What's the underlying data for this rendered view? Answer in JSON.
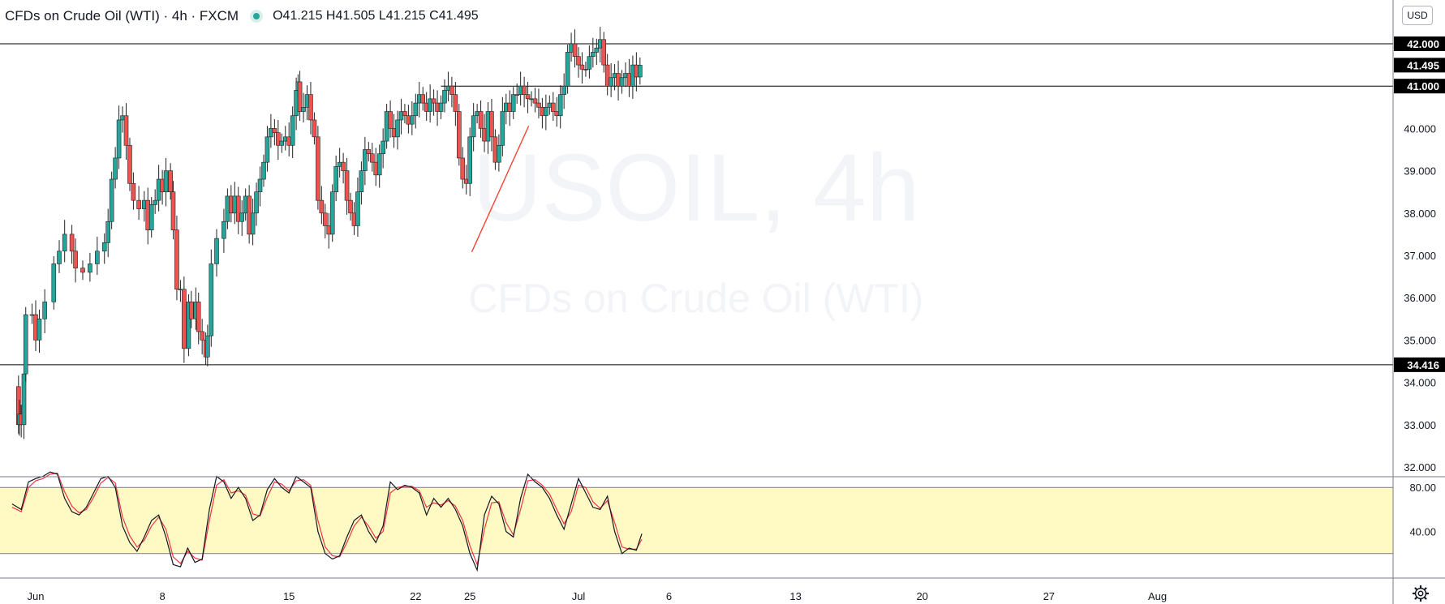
{
  "legend": {
    "symbol": "CFDs on Crude Oil (WTI) · 4h · FXCM",
    "ohlc": "O41.215  H41.505  L41.215  C41.495"
  },
  "watermark": {
    "symbol": "USOIL, 4h",
    "description": "CFDs on Crude Oil (WTI)"
  },
  "currency": "USD",
  "colors": {
    "up": "#26a69a",
    "down": "#ef5350",
    "wick": "#222222",
    "trendline": "#f44336",
    "level_line": "#000000",
    "stoch_k": "#131722",
    "stoch_d": "#f23645",
    "stoch_band_fill": "#fff9c4",
    "watermark": "#f3f4f7"
  },
  "icons": {
    "gear": "gear-icon",
    "status": "market-open-dot-icon"
  },
  "chart_data": {
    "type": "candlestick",
    "timeframe": "4h",
    "x_tick_labels": [
      "Jun",
      "8",
      "15",
      "22",
      "25",
      "Jul",
      "6",
      "13",
      "20",
      "27",
      "Aug"
    ],
    "price_axis": {
      "ylim": [
        31.8,
        43.0
      ],
      "tick_labels": [
        "42.000",
        "41.000",
        "40.000",
        "39.000",
        "38.000",
        "37.000",
        "36.000",
        "35.000",
        "34.000",
        "33.000",
        "32.000"
      ],
      "highlighted_labels": [
        {
          "text": "42.000",
          "value": 42.0
        },
        {
          "text": "41.495",
          "value": 41.495
        },
        {
          "text": "41.000",
          "value": 41.0
        },
        {
          "text": "34.416",
          "value": 34.416
        }
      ]
    },
    "horizontal_levels": [
      42.0,
      41.0,
      34.416
    ],
    "trendline": {
      "from": {
        "x_day": 25.1,
        "y": 37.08
      },
      "to": {
        "x_day": 28.25,
        "y": 40.06
      }
    },
    "candles_close_path": [
      [
        -0.3,
        33.9
      ],
      [
        0.05,
        33.0
      ],
      [
        0.1,
        33.25
      ],
      [
        0.2,
        33.0
      ],
      [
        0.35,
        34.2
      ],
      [
        0.45,
        35.6
      ],
      [
        0.8,
        35.6
      ],
      [
        1.0,
        35.0
      ],
      [
        1.2,
        35.5
      ],
      [
        1.5,
        35.9
      ],
      [
        2.0,
        36.8
      ],
      [
        2.3,
        37.1
      ],
      [
        2.6,
        37.5
      ],
      [
        3.0,
        37.1
      ],
      [
        3.2,
        36.7
      ],
      [
        3.6,
        36.6
      ],
      [
        4.0,
        36.8
      ],
      [
        4.4,
        37.1
      ],
      [
        4.8,
        37.3
      ],
      [
        5.0,
        37.8
      ],
      [
        5.2,
        38.8
      ],
      [
        5.4,
        39.3
      ],
      [
        5.6,
        40.2
      ],
      [
        5.8,
        40.3
      ],
      [
        6.0,
        39.6
      ],
      [
        6.2,
        38.7
      ],
      [
        6.4,
        38.3
      ],
      [
        6.7,
        38.1
      ],
      [
        7.0,
        38.3
      ],
      [
        7.2,
        37.6
      ],
      [
        7.4,
        38.2
      ],
      [
        7.6,
        38.3
      ],
      [
        7.8,
        38.8
      ],
      [
        8.0,
        38.5
      ],
      [
        8.2,
        39.0
      ],
      [
        8.45,
        38.5
      ],
      [
        8.6,
        37.6
      ],
      [
        8.8,
        36.2
      ],
      [
        9.0,
        36.2
      ],
      [
        9.2,
        34.8
      ],
      [
        9.45,
        35.9
      ],
      [
        9.6,
        35.5
      ],
      [
        9.85,
        35.9
      ],
      [
        10.0,
        35.2
      ],
      [
        10.2,
        35.0
      ],
      [
        10.4,
        34.6
      ],
      [
        10.5,
        35.1
      ],
      [
        10.7,
        36.8
      ],
      [
        11.0,
        37.4
      ],
      [
        11.4,
        37.8
      ],
      [
        11.6,
        38.4
      ],
      [
        11.8,
        38.0
      ],
      [
        12.0,
        38.4
      ],
      [
        12.2,
        37.8
      ],
      [
        12.4,
        38.0
      ],
      [
        12.6,
        38.4
      ],
      [
        12.8,
        37.5
      ],
      [
        13.0,
        38.0
      ],
      [
        13.2,
        38.5
      ],
      [
        13.4,
        38.8
      ],
      [
        13.6,
        39.2
      ],
      [
        13.8,
        39.8
      ],
      [
        14.0,
        40.0
      ],
      [
        14.2,
        39.9
      ],
      [
        14.4,
        39.6
      ],
      [
        14.6,
        39.7
      ],
      [
        14.8,
        39.8
      ],
      [
        15.0,
        39.6
      ],
      [
        15.2,
        40.3
      ],
      [
        15.4,
        40.9
      ],
      [
        15.5,
        41.1
      ],
      [
        15.6,
        40.4
      ],
      [
        15.8,
        40.5
      ],
      [
        16.0,
        40.8
      ],
      [
        16.2,
        40.2
      ],
      [
        16.4,
        39.8
      ],
      [
        16.6,
        38.3
      ],
      [
        16.8,
        38.0
      ],
      [
        17.0,
        37.7
      ],
      [
        17.2,
        37.5
      ],
      [
        17.4,
        38.5
      ],
      [
        17.6,
        39.1
      ],
      [
        17.8,
        39.2
      ],
      [
        18.0,
        39.0
      ],
      [
        18.2,
        38.3
      ],
      [
        18.4,
        38.0
      ],
      [
        18.6,
        37.7
      ],
      [
        18.8,
        38.5
      ],
      [
        19.0,
        39.0
      ],
      [
        19.2,
        39.5
      ],
      [
        19.4,
        39.4
      ],
      [
        19.6,
        39.2
      ],
      [
        19.8,
        38.9
      ],
      [
        20.0,
        39.4
      ],
      [
        20.2,
        39.7
      ],
      [
        20.4,
        40.4
      ],
      [
        20.6,
        40.0
      ],
      [
        20.8,
        39.8
      ],
      [
        21.0,
        40.2
      ],
      [
        21.2,
        40.4
      ],
      [
        21.4,
        40.3
      ],
      [
        21.6,
        40.1
      ],
      [
        21.8,
        40.3
      ],
      [
        22.0,
        40.6
      ],
      [
        22.2,
        40.8
      ],
      [
        22.4,
        40.6
      ],
      [
        22.6,
        40.4
      ],
      [
        22.8,
        40.7
      ],
      [
        23.0,
        40.6
      ],
      [
        23.2,
        40.4
      ],
      [
        23.4,
        40.6
      ],
      [
        23.6,
        40.9
      ],
      [
        23.8,
        41.0
      ],
      [
        24.0,
        40.8
      ],
      [
        24.2,
        40.4
      ],
      [
        24.4,
        39.3
      ],
      [
        24.6,
        38.8
      ],
      [
        24.8,
        38.7
      ],
      [
        25.0,
        39.8
      ],
      [
        25.2,
        40.3
      ],
      [
        25.4,
        40.4
      ],
      [
        25.6,
        40.0
      ],
      [
        25.8,
        39.7
      ],
      [
        26.0,
        40.4
      ],
      [
        26.2,
        39.8
      ],
      [
        26.4,
        39.2
      ],
      [
        26.6,
        39.6
      ],
      [
        26.8,
        40.4
      ],
      [
        27.0,
        40.6
      ],
      [
        27.2,
        40.4
      ],
      [
        27.4,
        40.8
      ],
      [
        27.6,
        40.8
      ],
      [
        27.8,
        41.0
      ],
      [
        28.0,
        40.8
      ],
      [
        28.2,
        40.7
      ],
      [
        28.4,
        40.7
      ],
      [
        28.6,
        40.6
      ],
      [
        28.8,
        40.5
      ],
      [
        29.0,
        40.3
      ],
      [
        29.2,
        40.5
      ],
      [
        29.4,
        40.6
      ],
      [
        29.6,
        40.4
      ],
      [
        29.8,
        40.3
      ],
      [
        30.0,
        40.8
      ],
      [
        30.2,
        41.0
      ],
      [
        30.4,
        41.8
      ],
      [
        30.6,
        42.0
      ],
      [
        30.8,
        41.7
      ],
      [
        31.0,
        41.5
      ],
      [
        31.2,
        41.4
      ],
      [
        31.4,
        41.4
      ],
      [
        31.6,
        41.7
      ],
      [
        31.8,
        41.8
      ],
      [
        32.0,
        41.9
      ],
      [
        32.2,
        42.1
      ],
      [
        32.4,
        41.5
      ],
      [
        32.6,
        41.0
      ],
      [
        32.8,
        41.2
      ],
      [
        33.0,
        41.3
      ],
      [
        33.2,
        41.0
      ],
      [
        33.4,
        41.2
      ],
      [
        33.6,
        41.3
      ],
      [
        33.8,
        41.0
      ],
      [
        34.0,
        41.5
      ],
      [
        34.2,
        41.215
      ],
      [
        34.4,
        41.495
      ]
    ],
    "stochastic": {
      "band": [
        20,
        80
      ],
      "tick_labels": [
        "80.00",
        "40.00"
      ],
      "k_path": [
        [
          -0.3,
          65
        ],
        [
          0.2,
          60
        ],
        [
          0.6,
          85
        ],
        [
          1.0,
          88
        ],
        [
          1.4,
          90
        ],
        [
          1.8,
          94
        ],
        [
          2.2,
          92
        ],
        [
          2.6,
          70
        ],
        [
          3.0,
          58
        ],
        [
          3.4,
          55
        ],
        [
          3.8,
          62
        ],
        [
          4.2,
          75
        ],
        [
          4.6,
          88
        ],
        [
          5.0,
          90
        ],
        [
          5.4,
          80
        ],
        [
          5.8,
          45
        ],
        [
          6.2,
          30
        ],
        [
          6.6,
          22
        ],
        [
          7.0,
          35
        ],
        [
          7.4,
          50
        ],
        [
          7.8,
          55
        ],
        [
          8.2,
          35
        ],
        [
          8.6,
          10
        ],
        [
          9.0,
          8
        ],
        [
          9.4,
          25
        ],
        [
          9.8,
          12
        ],
        [
          10.2,
          15
        ],
        [
          10.6,
          60
        ],
        [
          11.0,
          90
        ],
        [
          11.4,
          85
        ],
        [
          11.8,
          70
        ],
        [
          12.2,
          80
        ],
        [
          12.6,
          70
        ],
        [
          13.0,
          50
        ],
        [
          13.4,
          55
        ],
        [
          13.8,
          78
        ],
        [
          14.2,
          88
        ],
        [
          14.6,
          80
        ],
        [
          15.0,
          75
        ],
        [
          15.4,
          90
        ],
        [
          15.8,
          85
        ],
        [
          16.2,
          80
        ],
        [
          16.6,
          40
        ],
        [
          17.0,
          20
        ],
        [
          17.4,
          15
        ],
        [
          17.8,
          18
        ],
        [
          18.2,
          35
        ],
        [
          18.6,
          50
        ],
        [
          19.0,
          55
        ],
        [
          19.4,
          40
        ],
        [
          19.8,
          30
        ],
        [
          20.2,
          45
        ],
        [
          20.6,
          85
        ],
        [
          21.0,
          78
        ],
        [
          21.4,
          82
        ],
        [
          21.8,
          80
        ],
        [
          22.2,
          75
        ],
        [
          22.6,
          55
        ],
        [
          23.0,
          70
        ],
        [
          23.4,
          62
        ],
        [
          23.8,
          70
        ],
        [
          24.2,
          60
        ],
        [
          24.6,
          45
        ],
        [
          25.0,
          20
        ],
        [
          25.4,
          5
        ],
        [
          25.8,
          55
        ],
        [
          26.2,
          72
        ],
        [
          26.6,
          65
        ],
        [
          27.0,
          40
        ],
        [
          27.4,
          35
        ],
        [
          27.8,
          70
        ],
        [
          28.2,
          92
        ],
        [
          28.6,
          85
        ],
        [
          29.0,
          80
        ],
        [
          29.4,
          70
        ],
        [
          29.8,
          55
        ],
        [
          30.2,
          42
        ],
        [
          30.6,
          65
        ],
        [
          31.0,
          88
        ],
        [
          31.4,
          75
        ],
        [
          31.8,
          62
        ],
        [
          32.2,
          60
        ],
        [
          32.6,
          72
        ],
        [
          33.0,
          40
        ],
        [
          33.4,
          20
        ],
        [
          33.8,
          25
        ],
        [
          34.2,
          23
        ],
        [
          34.5,
          38
        ]
      ],
      "d_path": [
        [
          -0.3,
          62
        ],
        [
          0.2,
          58
        ],
        [
          0.6,
          80
        ],
        [
          1.0,
          86
        ],
        [
          1.4,
          88
        ],
        [
          1.8,
          92
        ],
        [
          2.2,
          93
        ],
        [
          2.6,
          76
        ],
        [
          3.0,
          63
        ],
        [
          3.4,
          57
        ],
        [
          3.8,
          60
        ],
        [
          4.2,
          71
        ],
        [
          4.6,
          84
        ],
        [
          5.0,
          89
        ],
        [
          5.4,
          84
        ],
        [
          5.8,
          53
        ],
        [
          6.2,
          36
        ],
        [
          6.6,
          26
        ],
        [
          7.0,
          32
        ],
        [
          7.4,
          45
        ],
        [
          7.8,
          53
        ],
        [
          8.2,
          42
        ],
        [
          8.6,
          17
        ],
        [
          9.0,
          11
        ],
        [
          9.4,
          22
        ],
        [
          9.8,
          16
        ],
        [
          10.2,
          14
        ],
        [
          10.6,
          50
        ],
        [
          11.0,
          82
        ],
        [
          11.4,
          87
        ],
        [
          11.8,
          75
        ],
        [
          12.2,
          77
        ],
        [
          12.6,
          73
        ],
        [
          13.0,
          56
        ],
        [
          13.4,
          54
        ],
        [
          13.8,
          71
        ],
        [
          14.2,
          85
        ],
        [
          14.6,
          83
        ],
        [
          15.0,
          77
        ],
        [
          15.4,
          86
        ],
        [
          15.8,
          87
        ],
        [
          16.2,
          82
        ],
        [
          16.6,
          50
        ],
        [
          17.0,
          26
        ],
        [
          17.4,
          18
        ],
        [
          17.8,
          17
        ],
        [
          18.2,
          30
        ],
        [
          18.6,
          45
        ],
        [
          19.0,
          53
        ],
        [
          19.4,
          45
        ],
        [
          19.8,
          34
        ],
        [
          20.2,
          40
        ],
        [
          20.6,
          75
        ],
        [
          21.0,
          80
        ],
        [
          21.4,
          81
        ],
        [
          21.8,
          81
        ],
        [
          22.2,
          77
        ],
        [
          22.6,
          62
        ],
        [
          23.0,
          66
        ],
        [
          23.4,
          64
        ],
        [
          23.8,
          68
        ],
        [
          24.2,
          63
        ],
        [
          24.6,
          50
        ],
        [
          25.0,
          27
        ],
        [
          25.4,
          10
        ],
        [
          25.8,
          42
        ],
        [
          26.2,
          66
        ],
        [
          26.6,
          67
        ],
        [
          27.0,
          48
        ],
        [
          27.4,
          37
        ],
        [
          27.8,
          60
        ],
        [
          28.2,
          86
        ],
        [
          28.6,
          87
        ],
        [
          29.0,
          82
        ],
        [
          29.4,
          74
        ],
        [
          29.8,
          60
        ],
        [
          30.2,
          47
        ],
        [
          30.6,
          58
        ],
        [
          31.0,
          82
        ],
        [
          31.4,
          80
        ],
        [
          31.8,
          67
        ],
        [
          32.2,
          61
        ],
        [
          32.6,
          68
        ],
        [
          33.0,
          48
        ],
        [
          33.4,
          26
        ],
        [
          33.8,
          24
        ],
        [
          34.2,
          24
        ],
        [
          34.5,
          33
        ]
      ]
    }
  }
}
